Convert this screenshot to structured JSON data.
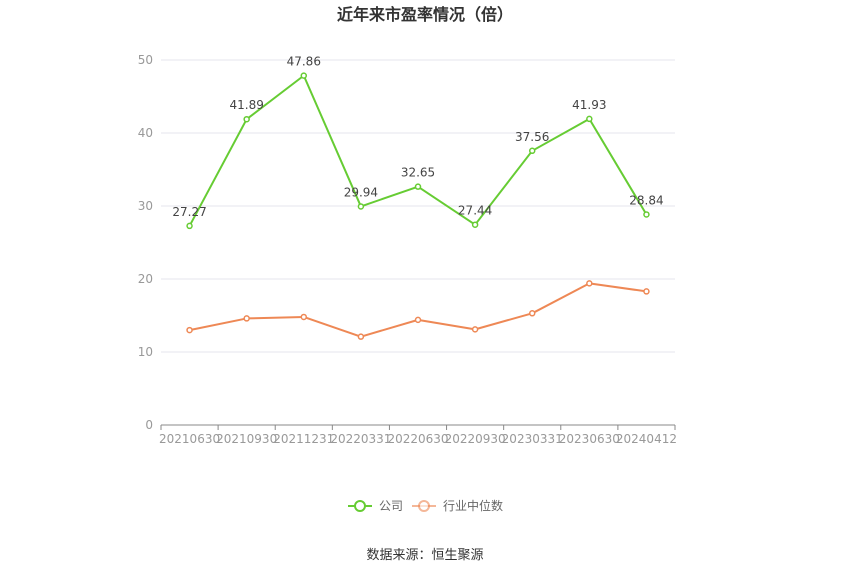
{
  "chart_data": {
    "type": "line",
    "title": "近年来市盈率情况（倍）",
    "categories": [
      "20210630",
      "20210930",
      "20211231",
      "20220331",
      "20220630",
      "20220930",
      "20230331",
      "20230630",
      "20240412"
    ],
    "ylim": [
      0,
      50
    ],
    "yticks": [
      0,
      10,
      20,
      30,
      40,
      50
    ],
    "grid": true,
    "legend_position": "bottom",
    "series": [
      {
        "name": "公司",
        "color": "#66cc33",
        "values": [
          27.27,
          41.89,
          47.86,
          29.94,
          32.65,
          27.44,
          37.56,
          41.93,
          28.84
        ],
        "labels": true
      },
      {
        "name": "行业中位数",
        "color": "#ee8855",
        "values": [
          13.0,
          14.6,
          14.8,
          12.1,
          14.4,
          13.1,
          15.3,
          19.4,
          18.3
        ],
        "labels": false
      }
    ]
  },
  "source": "数据来源：恒生聚源"
}
